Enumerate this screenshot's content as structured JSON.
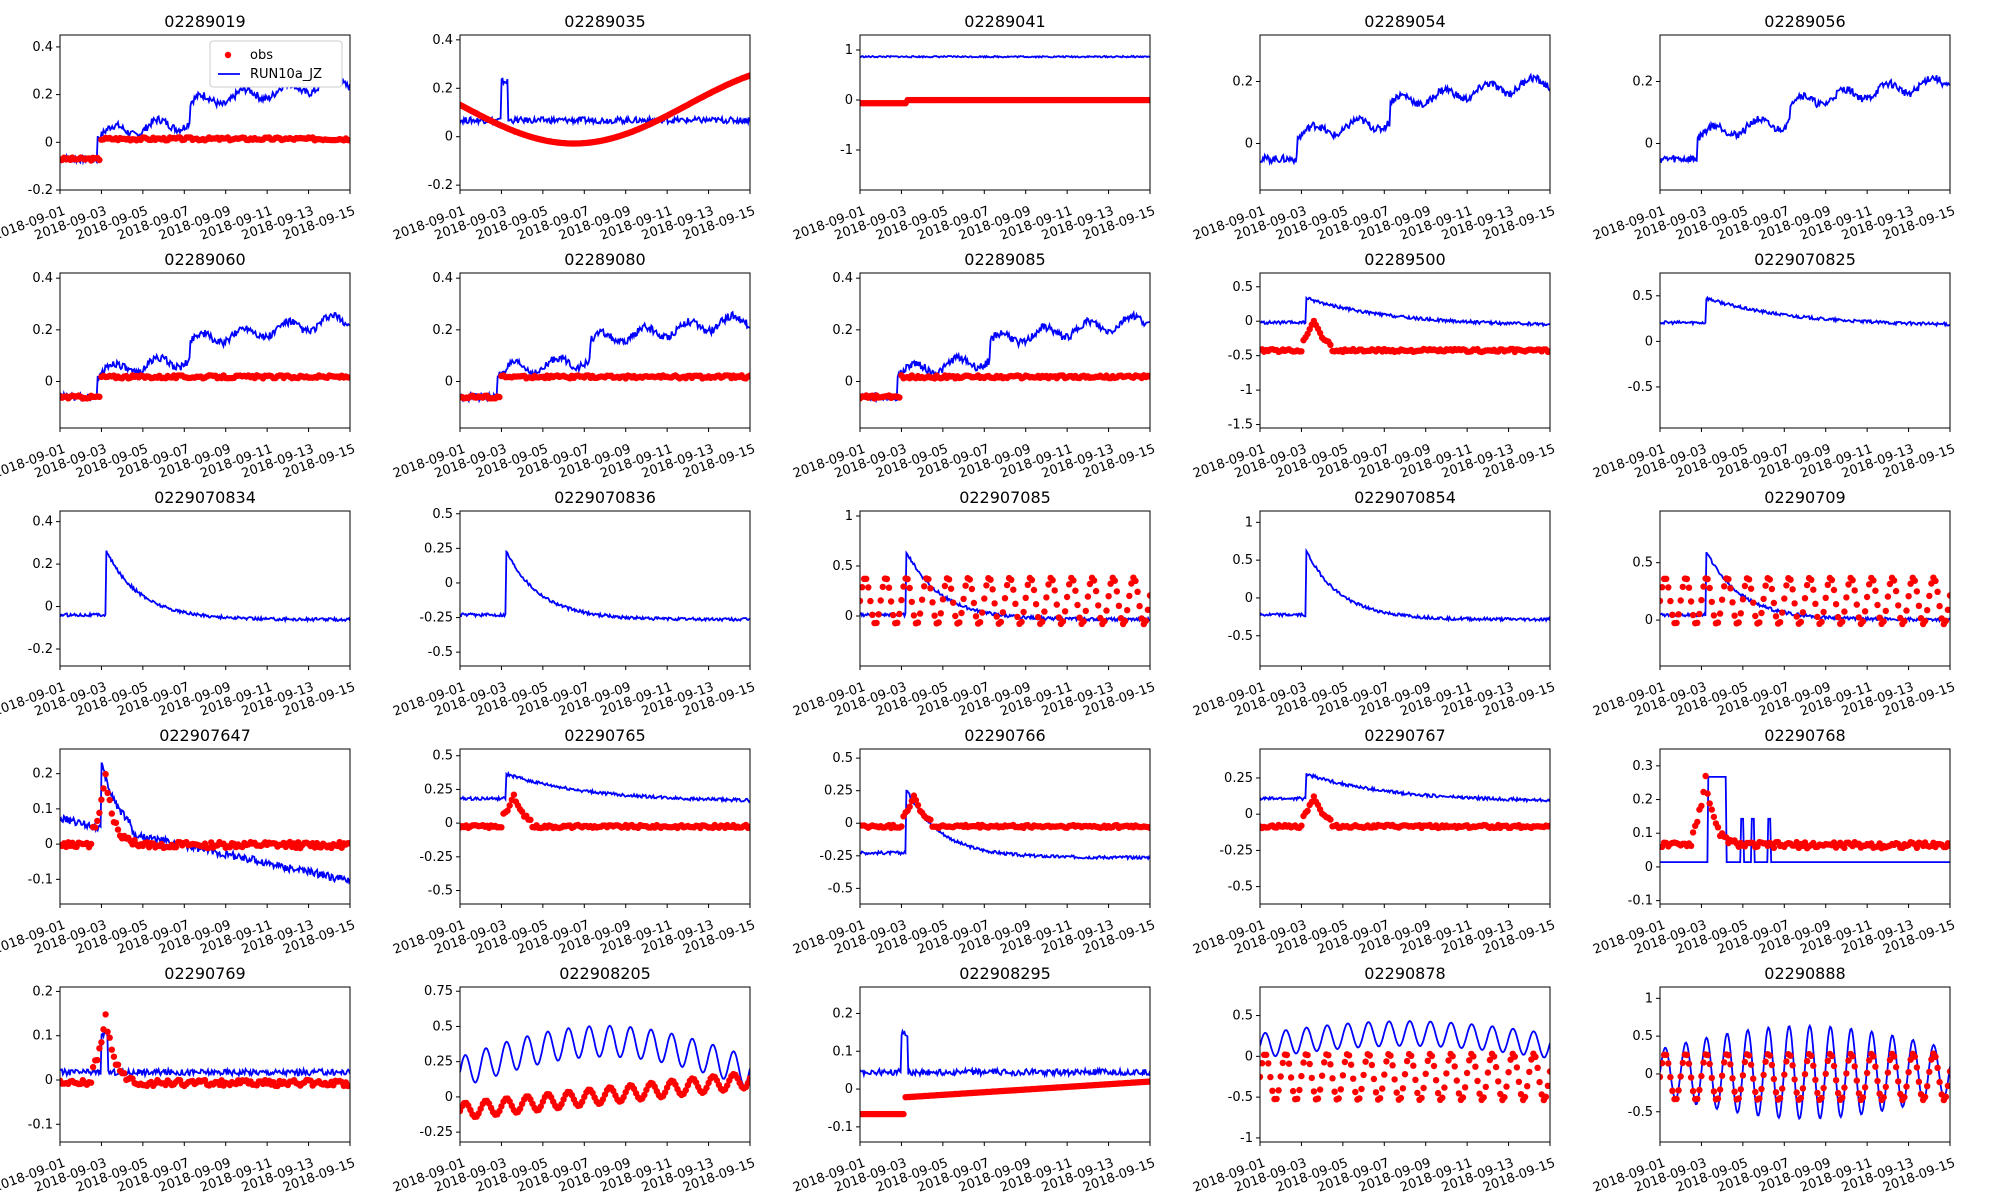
{
  "colors": {
    "obs": "#ff0000",
    "model": "#0000ff"
  },
  "chart_data": [
    {
      "type": "line",
      "title": "02289019",
      "ylim": [
        -0.2,
        0.45
      ],
      "yticks": [
        -0.2,
        0.0,
        0.2,
        0.4
      ],
      "legend": "top-right",
      "obs": "flat_low",
      "model": "step_up"
    },
    {
      "type": "line",
      "title": "02289035",
      "ylim": [
        -0.22,
        0.42
      ],
      "yticks": [
        -0.2,
        0.0,
        0.2,
        0.4
      ],
      "obs": "dip",
      "model": "flat_mid"
    },
    {
      "type": "line",
      "title": "02289041",
      "ylim": [
        -1.8,
        1.3
      ],
      "yticks": [
        -1,
        0,
        1
      ],
      "obs": "zero",
      "model": "one"
    },
    {
      "type": "line",
      "title": "02289054",
      "ylim": [
        -0.15,
        0.35
      ],
      "yticks": [
        0.0,
        0.2
      ],
      "obs": null,
      "model": "step_up"
    },
    {
      "type": "line",
      "title": "02289056",
      "ylim": [
        -0.15,
        0.35
      ],
      "yticks": [
        0.0,
        0.2
      ],
      "obs": null,
      "model": "step_up"
    },
    {
      "type": "line",
      "title": "02289060",
      "ylim": [
        -0.18,
        0.42
      ],
      "yticks": [
        0.0,
        0.2,
        0.4
      ],
      "obs": "flat_low",
      "model": "step_up"
    },
    {
      "type": "line",
      "title": "02289080",
      "ylim": [
        -0.18,
        0.42
      ],
      "yticks": [
        0.0,
        0.2,
        0.4
      ],
      "obs": "flat_low",
      "model": "step_up"
    },
    {
      "type": "line",
      "title": "02289085",
      "ylim": [
        -0.18,
        0.42
      ],
      "yticks": [
        0.0,
        0.2,
        0.4
      ],
      "obs": "flat_low",
      "model": "step_up"
    },
    {
      "type": "line",
      "title": "02289500",
      "ylim": [
        -1.55,
        0.7
      ],
      "yticks": [
        -1.5,
        -1.0,
        -0.5,
        0.0,
        0.5
      ],
      "obs": "peak_small",
      "model": "peak_decay_high"
    },
    {
      "type": "line",
      "title": "0229070825",
      "ylim": [
        -0.95,
        0.75
      ],
      "yticks": [
        -0.5,
        0.0,
        0.5
      ],
      "obs": null,
      "model": "peak_decay_high"
    },
    {
      "type": "line",
      "title": "0229070834",
      "ylim": [
        -0.28,
        0.45
      ],
      "yticks": [
        -0.2,
        0.0,
        0.2,
        0.4
      ],
      "obs": null,
      "model": "peak_decay"
    },
    {
      "type": "line",
      "title": "0229070836",
      "ylim": [
        -0.6,
        0.52
      ],
      "yticks": [
        -0.5,
        -0.25,
        0.0,
        0.25,
        0.5
      ],
      "obs": null,
      "model": "peak_decay"
    },
    {
      "type": "line",
      "title": "022907085",
      "ylim": [
        -0.5,
        1.05
      ],
      "yticks": [
        0.0,
        0.5,
        1.0
      ],
      "obs": "oscillating",
      "model": "peak_decay"
    },
    {
      "type": "line",
      "title": "0229070854",
      "ylim": [
        -0.9,
        1.15
      ],
      "yticks": [
        -0.5,
        0.0,
        0.5,
        1.0
      ],
      "obs": null,
      "model": "peak_decay"
    },
    {
      "type": "line",
      "title": "02290709",
      "ylim": [
        -0.4,
        0.95
      ],
      "yticks": [
        0.0,
        0.5
      ],
      "obs": "oscillating",
      "model": "peak_decay"
    },
    {
      "type": "line",
      "title": "022907647",
      "ylim": [
        -0.17,
        0.27
      ],
      "yticks": [
        -0.1,
        0.0,
        0.1,
        0.2
      ],
      "obs": "peak_big",
      "model": "decline"
    },
    {
      "type": "line",
      "title": "02290765",
      "ylim": [
        -0.6,
        0.55
      ],
      "yticks": [
        -0.5,
        -0.25,
        0.0,
        0.25,
        0.5
      ],
      "obs": "peak_small",
      "model": "peak_decay_high"
    },
    {
      "type": "line",
      "title": "02290766",
      "ylim": [
        -0.62,
        0.57
      ],
      "yticks": [
        -0.5,
        -0.25,
        0.0,
        0.25,
        0.5
      ],
      "obs": "peak_small",
      "model": "peak_decay"
    },
    {
      "type": "line",
      "title": "02290767",
      "ylim": [
        -0.62,
        0.45
      ],
      "yticks": [
        -0.5,
        -0.25,
        0.0,
        0.25
      ],
      "obs": "peak_small",
      "model": "peak_decay_high"
    },
    {
      "type": "line",
      "title": "02290768",
      "ylim": [
        -0.11,
        0.35
      ],
      "yticks": [
        -0.1,
        0.0,
        0.1,
        0.2,
        0.3
      ],
      "obs": "peak_big",
      "model": "spiky"
    },
    {
      "type": "line",
      "title": "02290769",
      "ylim": [
        -0.14,
        0.21
      ],
      "yticks": [
        -0.1,
        0.0,
        0.1,
        0.2
      ],
      "obs": "peak_big",
      "model": "flat_mid"
    },
    {
      "type": "line",
      "title": "022908205",
      "ylim": [
        -0.32,
        0.78
      ],
      "yticks": [
        -0.25,
        0.0,
        0.25,
        0.5,
        0.75
      ],
      "obs": "wavy_rise",
      "model": "wavy_rise_high"
    },
    {
      "type": "line",
      "title": "022908295",
      "ylim": [
        -0.14,
        0.27
      ],
      "yticks": [
        -0.1,
        0.0,
        0.1,
        0.2
      ],
      "obs": "slow_rise",
      "model": "flat_mid"
    },
    {
      "type": "line",
      "title": "02290878",
      "ylim": [
        -1.05,
        0.85
      ],
      "yticks": [
        -1.0,
        -0.5,
        0.0,
        0.5
      ],
      "obs": "oscillating",
      "model": "oscillating_high"
    },
    {
      "type": "line",
      "title": "02290888",
      "ylim": [
        -0.9,
        1.15
      ],
      "yticks": [
        -0.5,
        0.0,
        0.5,
        1.0
      ],
      "obs": "oscillating",
      "model": "oscillating_big"
    }
  ],
  "x_tick_labels": [
    "2018-09-01",
    "2018-09-03",
    "2018-09-05",
    "2018-09-07",
    "2018-09-09",
    "2018-09-11",
    "2018-09-13",
    "2018-09-15"
  ],
  "legend": {
    "obs": "obs",
    "model": "RUN10a_JZ"
  }
}
